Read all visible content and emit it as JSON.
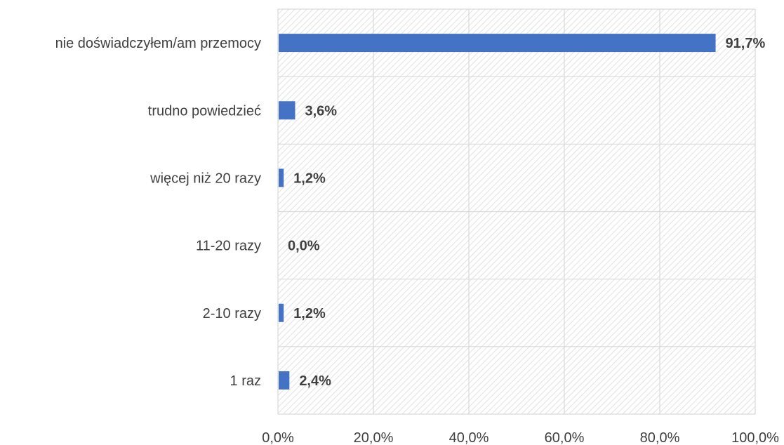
{
  "chart_data": {
    "type": "bar",
    "orientation": "horizontal",
    "title": "",
    "xlabel": "",
    "ylabel": "",
    "categories": [
      "nie doświadczyłem/am przemocy",
      "trudno powiedzieć",
      "więcej niż 20 razy",
      "11-20 razy",
      "2-10 razy",
      "1 raz"
    ],
    "values": [
      91.7,
      3.6,
      1.2,
      0.0,
      1.2,
      2.4
    ],
    "value_labels": [
      "91,7%",
      "3,6%",
      "1,2%",
      "0,0%",
      "1,2%",
      "2,4%"
    ],
    "xlim": [
      0,
      100
    ],
    "x_ticks": [
      0,
      20,
      40,
      60,
      80,
      100
    ],
    "x_tick_labels": [
      "0,0%",
      "20,0%",
      "40,0%",
      "60,0%",
      "80,0%",
      "100,0%"
    ],
    "grid": true,
    "legend": "none",
    "bar_color": "#4472c4",
    "plot_background": "hatched light gray",
    "grid_color": "#d9d9d9",
    "text_color": "#404040"
  }
}
